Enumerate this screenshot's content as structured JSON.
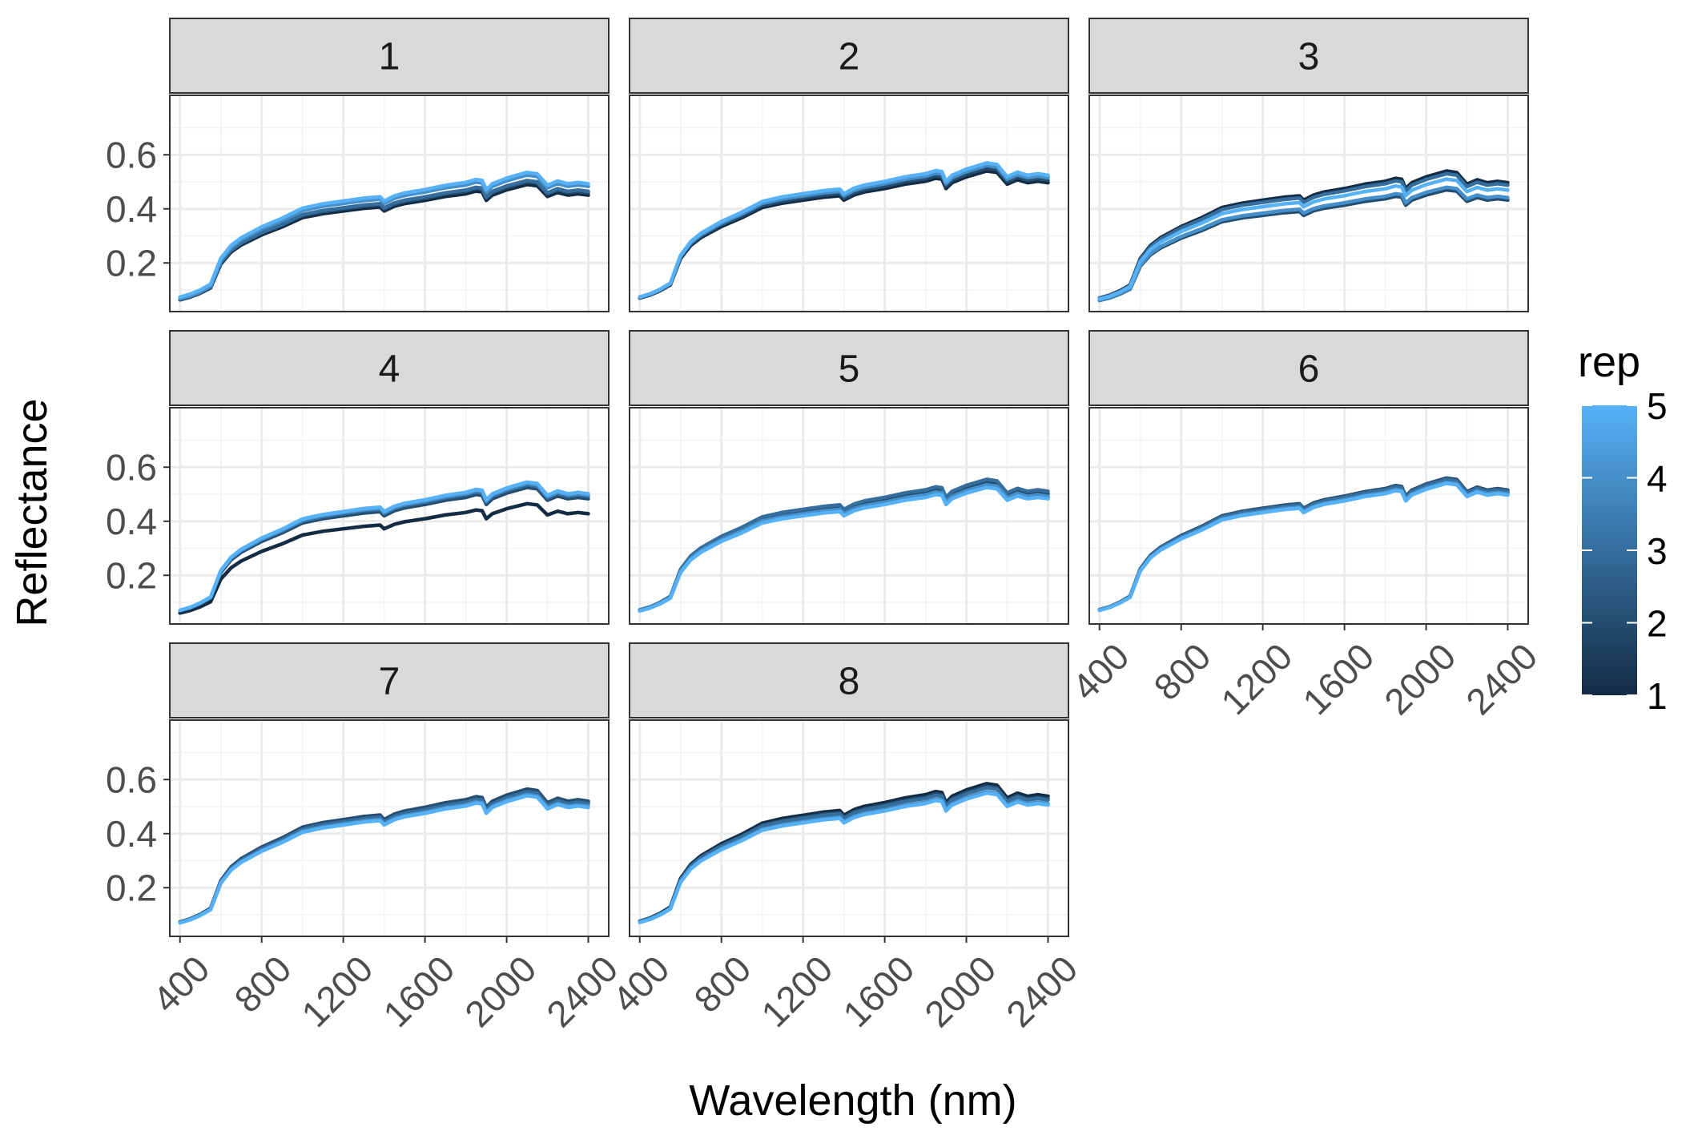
{
  "chart_data": {
    "type": "line",
    "facet_by": "sample",
    "panels": [
      "1",
      "2",
      "3",
      "4",
      "5",
      "6",
      "7",
      "8"
    ],
    "xlabel": "Wavelength (nm)",
    "ylabel": "Reflectance",
    "xlim": [
      350,
      2500
    ],
    "ylim": [
      0.02,
      0.82
    ],
    "x_ticks": [
      400,
      800,
      1200,
      1600,
      2000,
      2400
    ],
    "x_tick_labels": [
      "400",
      "800",
      "1200",
      "1600",
      "2000",
      "2400"
    ],
    "y_ticks": [
      0.2,
      0.4,
      0.6
    ],
    "y_tick_labels": [
      "0.2",
      "0.4",
      "0.6"
    ],
    "grid": true,
    "legend": {
      "title": "rep",
      "position": "right",
      "type": "colorbar",
      "range": [
        1,
        5
      ],
      "ticks": [
        1,
        2,
        3,
        4,
        5
      ],
      "tick_labels": [
        "1",
        "2",
        "3",
        "4",
        "5"
      ],
      "color_low": "#132B43",
      "color_high": "#56B1F7"
    },
    "x": [
      400,
      450,
      500,
      550,
      600,
      650,
      700,
      800,
      900,
      1000,
      1100,
      1200,
      1300,
      1380,
      1400,
      1450,
      1500,
      1600,
      1700,
      1800,
      1850,
      1880,
      1900,
      1930,
      2000,
      2100,
      2150,
      2200,
      2250,
      2300,
      2350,
      2400
    ],
    "base_shape": [
      0.065,
      0.075,
      0.09,
      0.11,
      0.2,
      0.245,
      0.272,
      0.31,
      0.34,
      0.375,
      0.39,
      0.4,
      0.41,
      0.415,
      0.4,
      0.418,
      0.428,
      0.44,
      0.455,
      0.465,
      0.475,
      0.472,
      0.44,
      0.46,
      0.48,
      0.5,
      0.495,
      0.455,
      0.47,
      0.46,
      0.465,
      0.46
    ],
    "series_by_panel": [
      {
        "panel": "1",
        "series": [
          {
            "rep": 1,
            "scale": 0.98,
            "offset": 0.0
          },
          {
            "rep": 2,
            "scale": 1.0,
            "offset": 0.0
          },
          {
            "rep": 3,
            "scale": 1.01,
            "offset": 0.0
          },
          {
            "rep": 4,
            "scale": 1.05,
            "offset": 0.0
          },
          {
            "rep": 5,
            "scale": 1.06,
            "offset": 0.005
          }
        ]
      },
      {
        "panel": "2",
        "series": [
          {
            "rep": 1,
            "scale": 1.08,
            "offset": 0.0
          },
          {
            "rep": 2,
            "scale": 1.1,
            "offset": 0.0
          },
          {
            "rep": 3,
            "scale": 1.13,
            "offset": 0.0
          },
          {
            "rep": 4,
            "scale": 1.12,
            "offset": 0.0
          },
          {
            "rep": 5,
            "scale": 1.14,
            "offset": 0.0
          }
        ]
      },
      {
        "panel": "3",
        "series": [
          {
            "rep": 1,
            "scale": 1.08,
            "offset": 0.0
          },
          {
            "rep": 2,
            "scale": 0.94,
            "offset": 0.0
          },
          {
            "rep": 3,
            "scale": 1.06,
            "offset": 0.0
          },
          {
            "rep": 4,
            "scale": 0.96,
            "offset": 0.0
          },
          {
            "rep": 5,
            "scale": 1.02,
            "offset": 0.0
          }
        ]
      },
      {
        "panel": "4",
        "series": [
          {
            "rep": 1,
            "scale": 0.93,
            "offset": 0.0
          },
          {
            "rep": 2,
            "scale": 1.05,
            "offset": 0.0
          },
          {
            "rep": 3,
            "scale": 1.07,
            "offset": 0.0
          },
          {
            "rep": 4,
            "scale": 1.08,
            "offset": 0.0
          },
          {
            "rep": 5,
            "scale": 1.09,
            "offset": 0.0
          }
        ]
      },
      {
        "panel": "5",
        "series": [
          {
            "rep": 1,
            "scale": 1.06,
            "offset": 0.0
          },
          {
            "rep": 2,
            "scale": 1.09,
            "offset": 0.0
          },
          {
            "rep": 3,
            "scale": 1.11,
            "offset": 0.0
          },
          {
            "rep": 4,
            "scale": 1.07,
            "offset": 0.0
          },
          {
            "rep": 5,
            "scale": 1.05,
            "offset": 0.0
          }
        ]
      },
      {
        "panel": "6",
        "series": [
          {
            "rep": 1,
            "scale": 1.1,
            "offset": 0.0
          },
          {
            "rep": 2,
            "scale": 1.12,
            "offset": 0.0
          },
          {
            "rep": 3,
            "scale": 1.11,
            "offset": 0.0
          },
          {
            "rep": 4,
            "scale": 1.09,
            "offset": 0.0
          },
          {
            "rep": 5,
            "scale": 1.08,
            "offset": 0.0
          }
        ]
      },
      {
        "panel": "7",
        "series": [
          {
            "rep": 1,
            "scale": 1.12,
            "offset": 0.0
          },
          {
            "rep": 2,
            "scale": 1.13,
            "offset": 0.0
          },
          {
            "rep": 3,
            "scale": 1.11,
            "offset": 0.0
          },
          {
            "rep": 4,
            "scale": 1.09,
            "offset": 0.0
          },
          {
            "rep": 5,
            "scale": 1.08,
            "offset": 0.0
          }
        ]
      },
      {
        "panel": "8",
        "series": [
          {
            "rep": 1,
            "scale": 1.17,
            "offset": 0.0
          },
          {
            "rep": 2,
            "scale": 1.15,
            "offset": 0.0
          },
          {
            "rep": 3,
            "scale": 1.14,
            "offset": 0.0
          },
          {
            "rep": 4,
            "scale": 1.11,
            "offset": 0.0
          },
          {
            "rep": 5,
            "scale": 1.1,
            "offset": 0.0
          }
        ]
      }
    ]
  }
}
